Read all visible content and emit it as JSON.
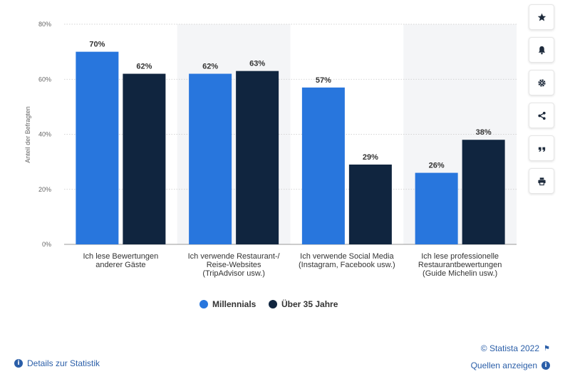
{
  "chart_data": {
    "type": "bar",
    "ylabel": "Anteil der Befragten",
    "ylim": [
      0,
      80
    ],
    "y_ticks": [
      "0%",
      "20%",
      "40%",
      "60%",
      "80%"
    ],
    "categories": [
      [
        "Ich lese Bewertungen",
        "anderer Gäste"
      ],
      [
        "Ich verwende Restaurant-/",
        "Reise-Websites",
        "(TripAdvisor usw.)"
      ],
      [
        "Ich verwende Social Media",
        "(Instagram, Facebook usw.)"
      ],
      [
        "Ich lese professionelle",
        "Restaurantbewertungen",
        "(Guide Michelin usw.)"
      ]
    ],
    "series": [
      {
        "name": "Millennials",
        "color": "#2876dd",
        "values": [
          70,
          62,
          57,
          26
        ],
        "labels": [
          "70%",
          "62%",
          "57%",
          "26%"
        ]
      },
      {
        "name": "Über 35 Jahre",
        "color": "#10253f",
        "values": [
          62,
          63,
          29,
          38
        ],
        "labels": [
          "62%",
          "63%",
          "29%",
          "38%"
        ]
      }
    ],
    "grid": true,
    "legend_position": "bottom"
  },
  "legend": {
    "item1": "Millennials",
    "item2": "Über 35 Jahre"
  },
  "toolbar": {
    "icons": [
      "star-icon",
      "bell-icon",
      "gear-icon",
      "share-icon",
      "quote-icon",
      "print-icon"
    ]
  },
  "footer": {
    "details": "Details zur Statistik",
    "copyright": "© Statista 2022",
    "sources": "Quellen anzeigen"
  }
}
